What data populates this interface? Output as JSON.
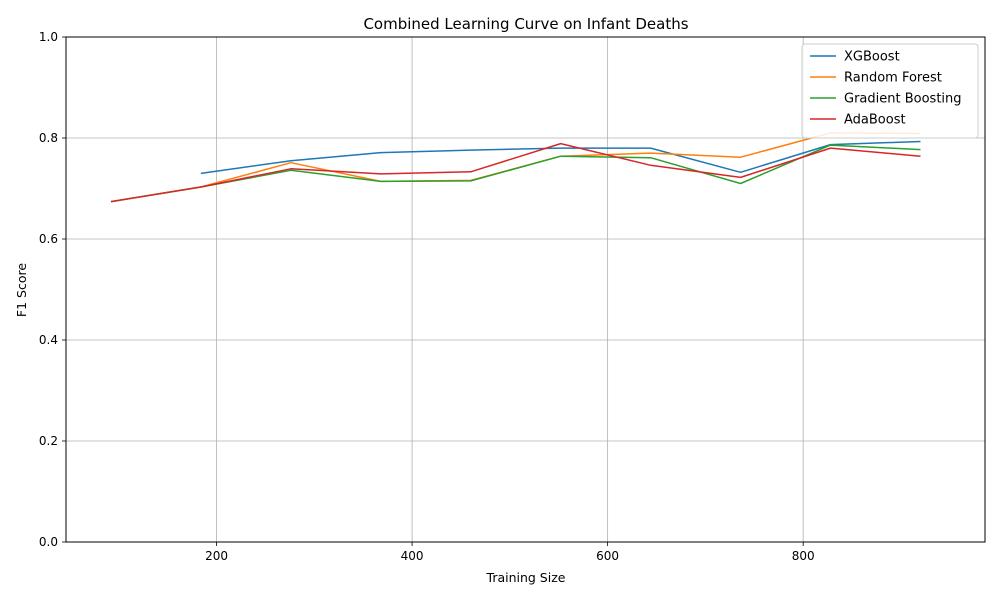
{
  "chart_data": {
    "type": "line",
    "title": "Combined Learning Curve on Infant Deaths",
    "xlabel": "Training Size",
    "ylabel": "F1 Score",
    "xlim": [
      46,
      986
    ],
    "ylim": [
      0,
      1.0
    ],
    "xticks": [
      200,
      400,
      600,
      800
    ],
    "yticks": [
      0.0,
      0.2,
      0.4,
      0.6,
      0.8,
      1.0
    ],
    "grid": true,
    "legend_position": "top-right",
    "series": [
      {
        "name": "XGBoost",
        "color": "#1f77b4",
        "x": [
          184,
          276,
          368,
          460,
          552,
          644,
          736,
          828,
          920
        ],
        "y": [
          0.73,
          0.755,
          0.771,
          0.776,
          0.78,
          0.78,
          0.732,
          0.787,
          0.793
        ]
      },
      {
        "name": "Random Forest",
        "color": "#ff7f0e",
        "x": [
          92,
          184,
          276,
          368,
          460,
          552,
          644,
          736,
          828,
          920
        ],
        "y": [
          0.674,
          0.703,
          0.751,
          0.714,
          0.716,
          0.764,
          0.77,
          0.762,
          0.81,
          0.809
        ]
      },
      {
        "name": "Gradient Boosting",
        "color": "#2ca02c",
        "x": [
          92,
          184,
          276,
          368,
          460,
          552,
          644,
          736,
          828,
          920
        ],
        "y": [
          0.674,
          0.703,
          0.736,
          0.714,
          0.715,
          0.764,
          0.761,
          0.71,
          0.786,
          0.777
        ]
      },
      {
        "name": "AdaBoost",
        "color": "#d62728",
        "x": [
          92,
          184,
          276,
          368,
          460,
          552,
          644,
          736,
          828,
          920
        ],
        "y": [
          0.674,
          0.703,
          0.739,
          0.729,
          0.733,
          0.789,
          0.746,
          0.722,
          0.78,
          0.764
        ]
      }
    ]
  }
}
